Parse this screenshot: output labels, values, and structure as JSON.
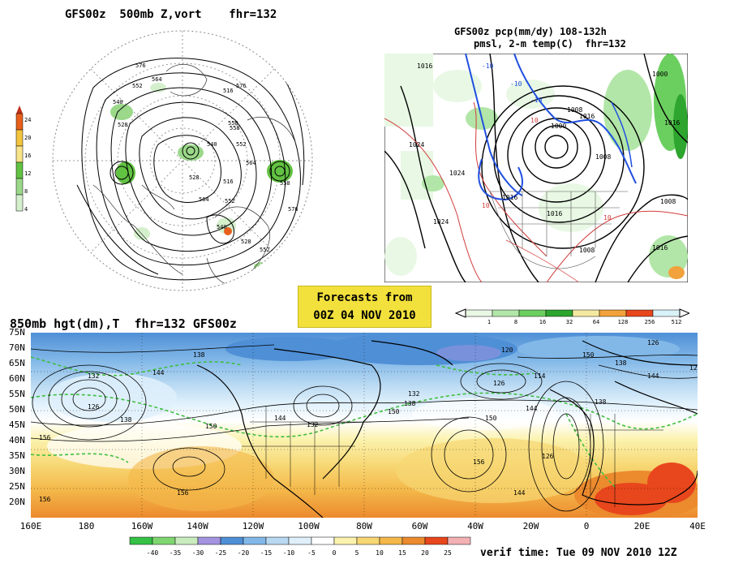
{
  "titles": {
    "polar": "GFS00z  500mb Z,vort    fhr=132",
    "regional_line1": "GFS00z pcp(mm/dy) 108-132h",
    "regional_line2": "pmsl, 2-m temp(C)  fhr=132",
    "global": "850mb hgt(dm),T  fhr=132 GFS00z"
  },
  "forecast_box": {
    "line1": "Forecasts from",
    "line2": "00Z 04 NOV 2010"
  },
  "verif": "verif time: Tue 09 NOV 2010 12Z",
  "vort_legend": {
    "labels": [
      "24",
      "20",
      "16",
      "12",
      "8",
      "4"
    ],
    "colors": [
      "#e8601c",
      "#f3c43e",
      "#f9e48a",
      "#62c242",
      "#9bd88a",
      "#d4efcc"
    ]
  },
  "pcp_legend": {
    "labels": [
      "1",
      "8",
      "16",
      "32",
      "64",
      "128",
      "256",
      "512"
    ],
    "colors": [
      "#e8f8e4",
      "#b2e6a8",
      "#6bcf5f",
      "#2da52e",
      "#f4e9a0",
      "#f2a23c",
      "#e8461c",
      "#d9f2f8"
    ]
  },
  "temp_legend": {
    "labels": [
      "-40",
      "-35",
      "-30",
      "-25",
      "-20",
      "-15",
      "-10",
      "-5",
      "0",
      "5",
      "10",
      "15",
      "20",
      "25"
    ],
    "colors": [
      "#35c146",
      "#7fd670",
      "#c9ecbf",
      "#a393e0",
      "#4f8fd6",
      "#82b8e8",
      "#b9d9f2",
      "#dff0fb",
      "#ffffff",
      "#fbf2ad",
      "#f7d773",
      "#f4b84a",
      "#ec8a2e",
      "#e8461c",
      "#f3b1b4"
    ]
  },
  "lat_labels": [
    "75N",
    "70N",
    "65N",
    "60N",
    "55N",
    "50N",
    "45N",
    "40N",
    "35N",
    "30N",
    "25N",
    "20N"
  ],
  "lon_labels": [
    "160E",
    "180",
    "160W",
    "140W",
    "120W",
    "100W",
    "80W",
    "60W",
    "40W",
    "20W",
    "0",
    "20E",
    "40E"
  ],
  "polar_contour_labels": [
    "576",
    "564",
    "552",
    "540",
    "528",
    "516",
    "576",
    "558",
    "558",
    "552",
    "540",
    "564",
    "528",
    "516",
    "564",
    "552",
    "558",
    "576",
    "540",
    "528",
    "552"
  ],
  "regional_labels": [
    "1016",
    "1024",
    "1024",
    "1008",
    "1000",
    "1016",
    "1008",
    "1016",
    "1016",
    "1024",
    "1008",
    "1000",
    "1016",
    "-10",
    "-10",
    "-10",
    "10",
    "10",
    "10",
    "1008",
    "1016"
  ],
  "global_height_labels": [
    "138",
    "132",
    "126",
    "144",
    "150",
    "156",
    "138",
    "132",
    "144",
    "150",
    "120",
    "114",
    "126",
    "132",
    "138",
    "144",
    "150",
    "156",
    "126",
    "138",
    "156",
    "144",
    "156",
    "150",
    "126",
    "138",
    "144",
    "12"
  ]
}
